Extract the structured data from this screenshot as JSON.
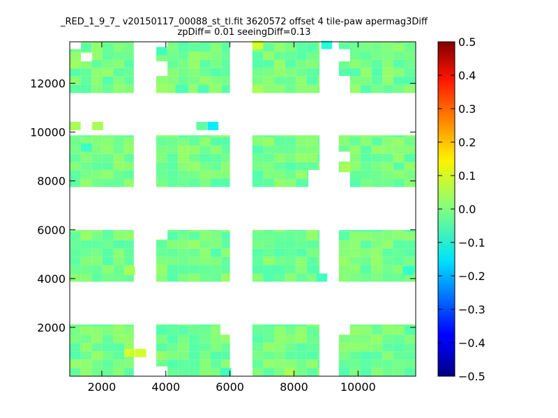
{
  "chart_data": {
    "type": "heatmap",
    "title": "_RED_1_9_7_ v20150117_00088_st_tl.fit 3620572 offset 4 tile-paw apermag3Diff",
    "subtitle": "zpDiff= 0.01 seeingDiff=0.13",
    "xlabel": "",
    "ylabel": "",
    "xlim": [
      1000,
      11800
    ],
    "ylim": [
      0,
      13700
    ],
    "x_ticks": [
      2000,
      4000,
      6000,
      8000,
      10000
    ],
    "y_ticks": [
      2000,
      4000,
      6000,
      8000,
      10000,
      12000
    ],
    "grid": false,
    "cell_size": 340,
    "base_value": -0.01,
    "colorbar": {
      "colormap": "jet",
      "range": [
        -0.5,
        0.5
      ],
      "ticks": [
        "0.5",
        "0.4",
        "0.3",
        "0.2",
        "0.1",
        "0.0",
        "−0.1",
        "−0.2",
        "−0.3",
        "−0.4",
        "−0.5"
      ]
    },
    "detector_blocks": [
      {
        "x": [
          1000,
          3000
        ],
        "y": [
          0,
          2120
        ]
      },
      {
        "x": [
          3700,
          6000
        ],
        "y": [
          0,
          2120
        ]
      },
      {
        "x": [
          6700,
          8800
        ],
        "y": [
          0,
          2120
        ]
      },
      {
        "x": [
          9400,
          11800
        ],
        "y": [
          0,
          2120
        ]
      },
      {
        "x": [
          1000,
          3000
        ],
        "y": [
          3870,
          5990
        ]
      },
      {
        "x": [
          3700,
          6000
        ],
        "y": [
          3870,
          5990
        ]
      },
      {
        "x": [
          6700,
          8800
        ],
        "y": [
          3870,
          5990
        ]
      },
      {
        "x": [
          9400,
          11800
        ],
        "y": [
          3870,
          5990
        ]
      },
      {
        "x": [
          1000,
          3000
        ],
        "y": [
          7750,
          9870
        ]
      },
      {
        "x": [
          3700,
          6000
        ],
        "y": [
          7750,
          9870
        ]
      },
      {
        "x": [
          6700,
          8800
        ],
        "y": [
          7750,
          9870
        ]
      },
      {
        "x": [
          9400,
          11800
        ],
        "y": [
          7750,
          9870
        ]
      },
      {
        "x": [
          1000,
          3000
        ],
        "y": [
          11600,
          13700
        ]
      },
      {
        "x": [
          3700,
          6000
        ],
        "y": [
          11600,
          13700
        ]
      },
      {
        "x": [
          6700,
          8800
        ],
        "y": [
          11600,
          13700
        ]
      },
      {
        "x": [
          9400,
          11800
        ],
        "y": [
          11600,
          13700
        ]
      }
    ],
    "notable_cells": [
      {
        "x": 5300,
        "y": 10080,
        "value": -0.14
      },
      {
        "x": 4950,
        "y": 10080,
        "value": -0.03
      },
      {
        "x": 1000,
        "y": 10080,
        "value": 0.04
      },
      {
        "x": 1700,
        "y": 10080,
        "value": 0.04
      },
      {
        "x": 6700,
        "y": 13400,
        "value": 0.08
      },
      {
        "x": 8850,
        "y": 13400,
        "value": -0.09
      },
      {
        "x": 2700,
        "y": 780,
        "value": 0.08
      },
      {
        "x": 3050,
        "y": 780,
        "value": 0.08
      },
      {
        "x": 2700,
        "y": 4150,
        "value": 0.04
      },
      {
        "x": 1000,
        "y": 12600,
        "value": 0.03
      },
      {
        "x": 9450,
        "y": 8360,
        "value": 0.04
      },
      {
        "x": 1350,
        "y": 9200,
        "value": -0.07
      },
      {
        "x": 3700,
        "y": 13150,
        "value": -0.06
      },
      {
        "x": 4300,
        "y": 11600,
        "value": -0.05
      },
      {
        "x": 5000,
        "y": 11600,
        "value": -0.05
      },
      {
        "x": 6700,
        "y": 11600,
        "value": 0.04
      },
      {
        "x": 11400,
        "y": 4150,
        "value": -0.08
      },
      {
        "x": 8700,
        "y": 3870,
        "value": -0.06
      },
      {
        "x": 5700,
        "y": 0,
        "value": -0.06
      },
      {
        "x": 7700,
        "y": 0,
        "value": 0.04
      }
    ]
  }
}
